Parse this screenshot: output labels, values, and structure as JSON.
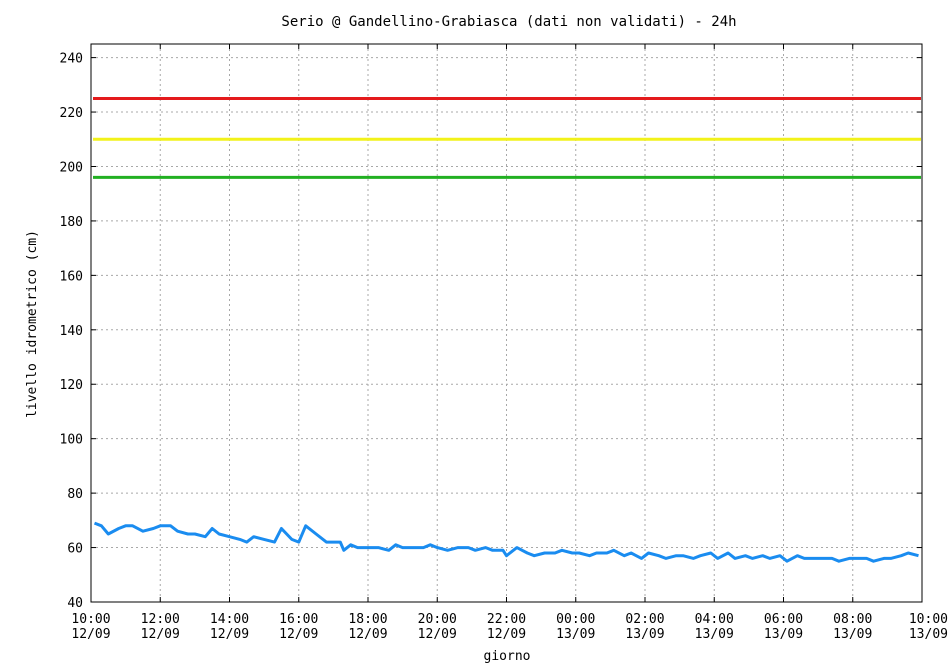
{
  "chart_data": {
    "type": "line",
    "title": "Serio @ Gandellino-Grabiasca (dati non validati) - 24h",
    "xlabel": "giorno",
    "ylabel": "livello idrometrico (cm)",
    "ylim": [
      40,
      245
    ],
    "xlim": [
      0,
      24
    ],
    "grid": true,
    "y_ticks": [
      40,
      60,
      80,
      100,
      120,
      140,
      160,
      180,
      200,
      220,
      240
    ],
    "x_ticks": [
      {
        "x": 0,
        "time": "10:00",
        "date": "12/09"
      },
      {
        "x": 2,
        "time": "12:00",
        "date": "12/09"
      },
      {
        "x": 4,
        "time": "14:00",
        "date": "12/09"
      },
      {
        "x": 6,
        "time": "16:00",
        "date": "12/09"
      },
      {
        "x": 8,
        "time": "18:00",
        "date": "12/09"
      },
      {
        "x": 10,
        "time": "20:00",
        "date": "12/09"
      },
      {
        "x": 12,
        "time": "22:00",
        "date": "12/09"
      },
      {
        "x": 14,
        "time": "00:00",
        "date": "13/09"
      },
      {
        "x": 16,
        "time": "02:00",
        "date": "13/09"
      },
      {
        "x": 18,
        "time": "04:00",
        "date": "13/09"
      },
      {
        "x": 20,
        "time": "06:00",
        "date": "13/09"
      },
      {
        "x": 22,
        "time": "08:00",
        "date": "13/09"
      },
      {
        "x": 24,
        "time": "10:00",
        "date": "13/09"
      }
    ],
    "thresholds": [
      {
        "value": 225,
        "color": "#e41a1c"
      },
      {
        "value": 210,
        "color": "#f2f21a"
      },
      {
        "value": 196,
        "color": "#22b022"
      }
    ],
    "series": [
      {
        "color": "#1a8cf0",
        "x": [
          0.1,
          0.3,
          0.5,
          0.8,
          1.0,
          1.2,
          1.5,
          1.8,
          2.0,
          2.3,
          2.5,
          2.8,
          3.0,
          3.3,
          3.5,
          3.7,
          4.0,
          4.3,
          4.5,
          4.7,
          5.0,
          5.3,
          5.5,
          5.8,
          6.0,
          6.2,
          6.5,
          6.8,
          7.0,
          7.2,
          7.3,
          7.5,
          7.7,
          8.0,
          8.3,
          8.6,
          8.8,
          9.0,
          9.3,
          9.6,
          9.8,
          10.0,
          10.3,
          10.6,
          10.9,
          11.1,
          11.4,
          11.6,
          11.9,
          12.0,
          12.3,
          12.6,
          12.8,
          13.1,
          13.4,
          13.6,
          13.9,
          14.1,
          14.4,
          14.6,
          14.9,
          15.1,
          15.4,
          15.6,
          15.9,
          16.1,
          16.4,
          16.6,
          16.9,
          17.1,
          17.4,
          17.6,
          17.9,
          18.1,
          18.4,
          18.6,
          18.9,
          19.1,
          19.4,
          19.6,
          19.9,
          20.1,
          20.4,
          20.6,
          20.9,
          21.1,
          21.4,
          21.6,
          21.9,
          22.1,
          22.4,
          22.6,
          22.9,
          23.1,
          23.4,
          23.6,
          23.9
        ],
        "values": [
          69,
          68,
          65,
          67,
          68,
          68,
          66,
          67,
          68,
          68,
          66,
          65,
          65,
          64,
          67,
          65,
          64,
          63,
          62,
          64,
          63,
          62,
          67,
          63,
          62,
          68,
          65,
          62,
          62,
          62,
          59,
          61,
          60,
          60,
          60,
          59,
          61,
          60,
          60,
          60,
          61,
          60,
          59,
          60,
          60,
          59,
          60,
          59,
          59,
          57,
          60,
          58,
          57,
          58,
          58,
          59,
          58,
          58,
          57,
          58,
          58,
          59,
          57,
          58,
          56,
          58,
          57,
          56,
          57,
          57,
          56,
          57,
          58,
          56,
          58,
          56,
          57,
          56,
          57,
          56,
          57,
          55,
          57,
          56,
          56,
          56,
          56,
          55,
          56,
          56,
          56,
          55,
          56,
          56,
          57,
          58,
          57
        ]
      }
    ]
  }
}
